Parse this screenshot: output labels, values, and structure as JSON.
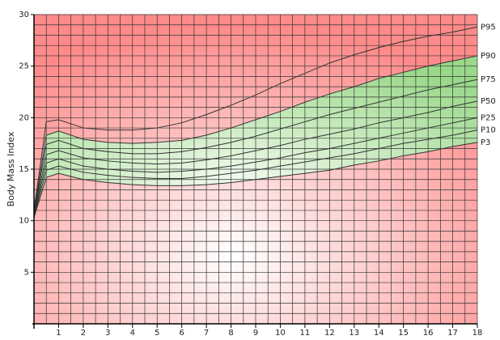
{
  "chart_data": {
    "type": "line",
    "y_label": "Body Mass Index",
    "x": [
      0,
      0.5,
      1,
      2,
      3,
      4,
      5,
      6,
      7,
      8,
      9,
      10,
      11,
      12,
      13,
      14,
      15,
      16,
      17,
      18
    ],
    "series": [
      {
        "name": "P3",
        "color": "#333333",
        "values": [
          10.3,
          14.2,
          14.6,
          14.0,
          13.7,
          13.5,
          13.4,
          13.4,
          13.5,
          13.7,
          14.0,
          14.3,
          14.6,
          14.9,
          15.4,
          15.8,
          16.3,
          16.7,
          17.2,
          17.6
        ]
      },
      {
        "name": "P10",
        "color": "#333333",
        "values": [
          10.4,
          14.9,
          15.3,
          14.7,
          14.4,
          14.2,
          14.1,
          14.1,
          14.3,
          14.6,
          14.9,
          15.3,
          15.7,
          16.1,
          16.5,
          17.0,
          17.5,
          17.9,
          18.3,
          18.8
        ]
      },
      {
        "name": "P25",
        "color": "#333333",
        "values": [
          10.5,
          15.6,
          16.0,
          15.3,
          15.0,
          14.8,
          14.7,
          14.8,
          15.0,
          15.3,
          15.7,
          16.1,
          16.6,
          17.0,
          17.5,
          18.0,
          18.5,
          19.0,
          19.5,
          20.0
        ]
      },
      {
        "name": "P50",
        "color": "#333333",
        "values": [
          10.6,
          16.4,
          16.8,
          16.1,
          15.8,
          15.6,
          15.5,
          15.6,
          15.9,
          16.3,
          16.8,
          17.3,
          17.9,
          18.4,
          18.9,
          19.5,
          20.0,
          20.5,
          21.1,
          21.6
        ]
      },
      {
        "name": "P75",
        "color": "#333333",
        "values": [
          10.7,
          17.4,
          17.8,
          17.0,
          16.7,
          16.5,
          16.5,
          16.7,
          17.1,
          17.6,
          18.2,
          18.9,
          19.6,
          20.3,
          20.9,
          21.5,
          22.1,
          22.7,
          23.2,
          23.7
        ]
      },
      {
        "name": "P90",
        "color": "#333333",
        "values": [
          10.8,
          18.3,
          18.7,
          17.9,
          17.6,
          17.5,
          17.6,
          17.8,
          18.3,
          19.0,
          19.8,
          20.6,
          21.5,
          22.3,
          23.0,
          23.8,
          24.4,
          25.0,
          25.5,
          26.0
        ]
      },
      {
        "name": "P95",
        "color": "#333333",
        "values": [
          11.0,
          19.6,
          19.8,
          19.0,
          18.8,
          18.8,
          19.0,
          19.5,
          20.3,
          21.2,
          22.2,
          23.3,
          24.3,
          25.3,
          26.1,
          26.8,
          27.4,
          27.9,
          28.3,
          28.8
        ]
      }
    ],
    "band": {
      "lower": 0,
      "upper": 5,
      "color": "#9ad88a"
    },
    "background_color": "#ff8a8a",
    "xlim": [
      0,
      18
    ],
    "xticks": [
      1,
      2,
      3,
      4,
      5,
      6,
      7,
      8,
      9,
      10,
      11,
      12,
      13,
      14,
      15,
      16,
      17,
      18
    ],
    "ylim": [
      0,
      30
    ],
    "yticks": [
      5,
      10,
      15,
      20,
      25,
      30
    ],
    "grid": true,
    "minor_grid": {
      "x": 0.5,
      "y": 1
    }
  }
}
